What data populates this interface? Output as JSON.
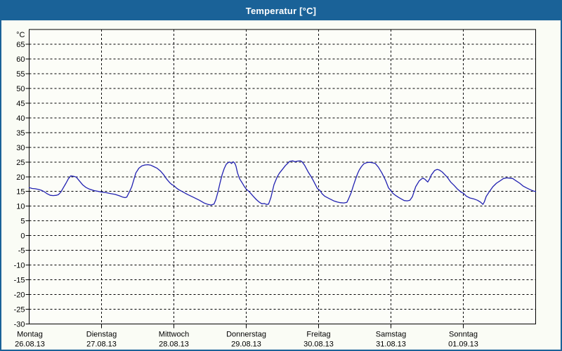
{
  "window": {
    "title": "Temperatur [°C]"
  },
  "colors": {
    "titlebar": "#1a6298",
    "window_bg": "#fafcf5",
    "plot_bg": "#fcfdf8",
    "grid": "#000000",
    "axis": "#000000",
    "line": "#2121b1",
    "title_text": "#ffffff",
    "label_text": "#000000"
  },
  "chart_data": {
    "type": "line",
    "title": "Temperatur [°C]",
    "ylabel": "°C",
    "ylim": [
      -30,
      70
    ],
    "ytick_step": 5,
    "ytick_labels": [
      "65",
      "60",
      "55",
      "50",
      "45",
      "40",
      "35",
      "30",
      "25",
      "20",
      "15",
      "10",
      "5",
      "0",
      "-5",
      "-10",
      "-15",
      "-20",
      "-25",
      "-30"
    ],
    "grid": "dashed",
    "legend_position": "none",
    "x_axis": {
      "total_hours": 168,
      "days": [
        {
          "name": "Montag",
          "date": "26.08.13"
        },
        {
          "name": "Dienstag",
          "date": "27.08.13"
        },
        {
          "name": "Mittwoch",
          "date": "28.08.13"
        },
        {
          "name": "Donnerstag",
          "date": "29.08.13"
        },
        {
          "name": "Freitag",
          "date": "30.08.13"
        },
        {
          "name": "Samstag",
          "date": "31.08.13"
        },
        {
          "name": "Sonntag",
          "date": "01.09.13"
        }
      ]
    },
    "series": [
      {
        "name": "Temperatur",
        "color": "#2121b1",
        "points": [
          [
            0,
            16.3
          ],
          [
            1,
            16.0
          ],
          [
            2,
            15.9
          ],
          [
            3,
            15.7
          ],
          [
            4,
            15.4
          ],
          [
            5,
            14.9
          ],
          [
            6,
            14.2
          ],
          [
            7,
            13.7
          ],
          [
            8,
            13.6
          ],
          [
            9,
            13.7
          ],
          [
            9.7,
            13.9
          ],
          [
            10.5,
            14.8
          ],
          [
            11.3,
            16.2
          ],
          [
            12.2,
            17.8
          ],
          [
            13,
            19.3
          ],
          [
            13.8,
            20.3
          ],
          [
            14.8,
            20.1
          ],
          [
            15.6,
            19.9
          ],
          [
            16.5,
            18.8
          ],
          [
            17.7,
            17.3
          ],
          [
            18.8,
            16.4
          ],
          [
            20,
            15.8
          ],
          [
            21.5,
            15.3
          ],
          [
            23,
            15.0
          ],
          [
            24,
            14.8
          ],
          [
            25.5,
            14.6
          ],
          [
            27,
            14.3
          ],
          [
            28.5,
            14.0
          ],
          [
            30,
            13.5
          ],
          [
            31,
            13.1
          ],
          [
            31.8,
            12.9
          ],
          [
            32.4,
            13.1
          ],
          [
            33.2,
            14.8
          ],
          [
            34,
            16.5
          ],
          [
            34.7,
            18.9
          ],
          [
            35.4,
            21.3
          ],
          [
            36.4,
            22.9
          ],
          [
            37.4,
            23.7
          ],
          [
            38.4,
            24.0
          ],
          [
            39.4,
            24.1
          ],
          [
            40.4,
            23.9
          ],
          [
            41.4,
            23.4
          ],
          [
            42.4,
            22.9
          ],
          [
            43.6,
            21.9
          ],
          [
            44.6,
            20.7
          ],
          [
            45.6,
            19.2
          ],
          [
            46.6,
            18.0
          ],
          [
            47.4,
            17.3
          ],
          [
            48,
            17.0
          ],
          [
            48.8,
            16.2
          ],
          [
            49.6,
            15.6
          ],
          [
            50.7,
            15.0
          ],
          [
            52.5,
            14.0
          ],
          [
            54.5,
            13.0
          ],
          [
            56.5,
            12.0
          ],
          [
            58,
            11.1
          ],
          [
            59.3,
            10.6
          ],
          [
            60.3,
            10.4
          ],
          [
            61.3,
            10.7
          ],
          [
            61.9,
            12.2
          ],
          [
            62.6,
            14.8
          ],
          [
            63.3,
            17.9
          ],
          [
            64,
            20.7
          ],
          [
            64.7,
            22.8
          ],
          [
            65.4,
            24.3
          ],
          [
            66,
            24.8
          ],
          [
            66.6,
            25.0
          ],
          [
            67.1,
            24.5
          ],
          [
            67.7,
            25.1
          ],
          [
            68.2,
            24.6
          ],
          [
            68.6,
            23.6
          ],
          [
            69.1,
            21.3
          ],
          [
            69.8,
            19.3
          ],
          [
            70.6,
            18.0
          ],
          [
            71.3,
            16.8
          ],
          [
            72,
            15.8
          ],
          [
            72.9,
            15.0
          ],
          [
            73.6,
            14.2
          ],
          [
            74.4,
            13.3
          ],
          [
            75.4,
            12.2
          ],
          [
            76.4,
            11.3
          ],
          [
            77.2,
            10.8
          ],
          [
            78,
            10.9
          ],
          [
            78.7,
            10.6
          ],
          [
            79.4,
            10.7
          ],
          [
            80.2,
            13.0
          ],
          [
            81.2,
            17.3
          ],
          [
            82.2,
            19.8
          ],
          [
            83,
            21.2
          ],
          [
            84,
            22.5
          ],
          [
            85,
            23.8
          ],
          [
            85.7,
            24.5
          ],
          [
            86.4,
            25.2
          ],
          [
            87.4,
            25.4
          ],
          [
            88.2,
            25.1
          ],
          [
            89,
            25.3
          ],
          [
            90,
            25.4
          ],
          [
            90.6,
            25.0
          ],
          [
            91.4,
            23.8
          ],
          [
            92.5,
            21.7
          ],
          [
            93.3,
            20.4
          ],
          [
            94.1,
            19.0
          ],
          [
            94.9,
            17.4
          ],
          [
            95.6,
            16.0
          ],
          [
            96,
            15.7
          ],
          [
            96.5,
            15.3
          ],
          [
            97.2,
            14.2
          ],
          [
            98,
            13.4
          ],
          [
            99.5,
            12.6
          ],
          [
            101,
            11.8
          ],
          [
            102.2,
            11.4
          ],
          [
            103.2,
            11.2
          ],
          [
            104.4,
            11.1
          ],
          [
            105.4,
            11.3
          ],
          [
            106,
            12.6
          ],
          [
            106.8,
            14.6
          ],
          [
            107.5,
            16.9
          ],
          [
            108.2,
            19.0
          ],
          [
            108.9,
            21.0
          ],
          [
            109.5,
            22.3
          ],
          [
            110.2,
            23.4
          ],
          [
            111,
            24.4
          ],
          [
            112,
            24.8
          ],
          [
            113,
            24.9
          ],
          [
            114,
            24.7
          ],
          [
            114.8,
            24.5
          ],
          [
            115.8,
            23.3
          ],
          [
            117,
            21.3
          ],
          [
            118.2,
            18.8
          ],
          [
            119.2,
            16.2
          ],
          [
            119.7,
            15.6
          ],
          [
            120,
            15.3
          ],
          [
            120.6,
            14.4
          ],
          [
            121.6,
            13.6
          ],
          [
            122.5,
            13.0
          ],
          [
            123.5,
            12.4
          ],
          [
            124.4,
            11.9
          ],
          [
            125.4,
            11.8
          ],
          [
            126.3,
            12.0
          ],
          [
            127.1,
            13.2
          ],
          [
            128.2,
            16.6
          ],
          [
            129.4,
            18.6
          ],
          [
            130.2,
            19.3
          ],
          [
            130.7,
            19.5
          ],
          [
            131.3,
            19.1
          ],
          [
            132.2,
            18.2
          ],
          [
            132.8,
            19.2
          ],
          [
            133.4,
            20.6
          ],
          [
            134.5,
            22.1
          ],
          [
            135.3,
            22.5
          ],
          [
            136,
            22.3
          ],
          [
            137,
            21.6
          ],
          [
            137.6,
            21.0
          ],
          [
            138.7,
            19.8
          ],
          [
            139.8,
            18.2
          ],
          [
            141,
            17.0
          ],
          [
            142.1,
            15.8
          ],
          [
            143.2,
            14.8
          ],
          [
            144,
            14.4
          ],
          [
            145,
            13.4
          ],
          [
            146.2,
            12.8
          ],
          [
            147.4,
            12.5
          ],
          [
            148.7,
            12.0
          ],
          [
            149.8,
            11.3
          ],
          [
            150.5,
            10.6
          ],
          [
            151,
            11.5
          ],
          [
            151.6,
            13.3
          ],
          [
            152.7,
            15.0
          ],
          [
            153.8,
            16.6
          ],
          [
            155,
            17.8
          ],
          [
            156.2,
            18.6
          ],
          [
            157.3,
            19.4
          ],
          [
            158.4,
            19.6
          ],
          [
            159.5,
            19.5
          ],
          [
            160.4,
            19.4
          ],
          [
            161.5,
            18.6
          ],
          [
            162.7,
            17.8
          ],
          [
            163.9,
            16.8
          ],
          [
            165,
            16.2
          ],
          [
            166.2,
            15.6
          ],
          [
            167.4,
            15.1
          ],
          [
            168,
            15.0
          ]
        ]
      }
    ]
  }
}
